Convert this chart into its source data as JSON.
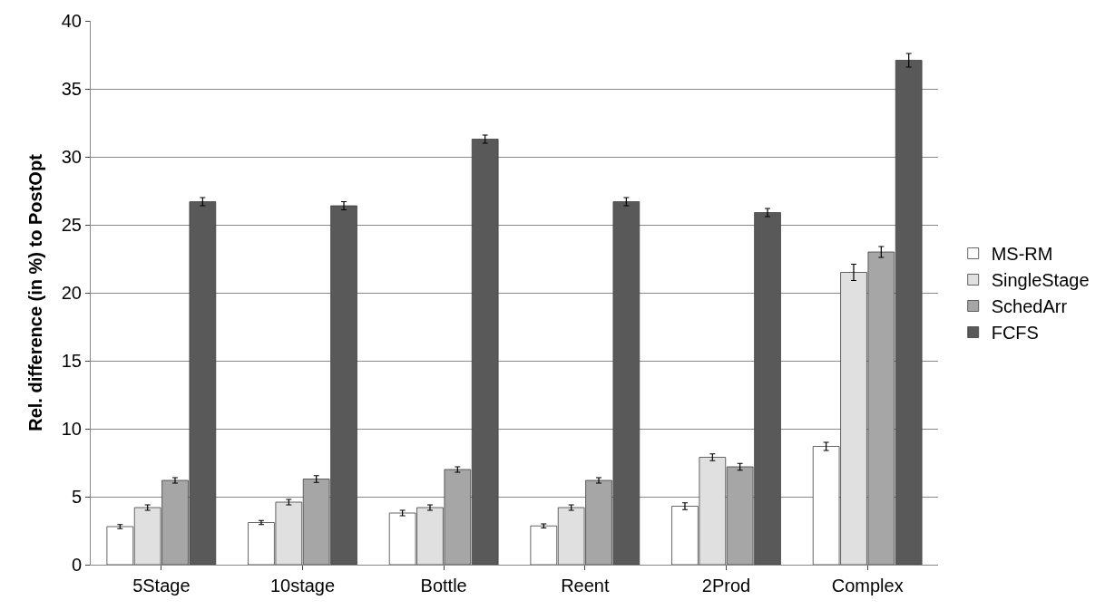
{
  "chart_data": {
    "type": "bar",
    "ylabel": "Rel. difference (in %) to PostOpt",
    "categories": [
      "5Stage",
      "10stage",
      "Bottle",
      "Reent",
      "2Prod",
      "Complex"
    ],
    "series": [
      {
        "name": "MS-RM",
        "color": "#ffffff",
        "values": [
          2.8,
          3.1,
          3.8,
          2.85,
          4.3,
          8.7
        ],
        "errors": [
          0.15,
          0.15,
          0.2,
          0.15,
          0.25,
          0.3
        ]
      },
      {
        "name": "SingleStage",
        "color": "#e0e0e0",
        "values": [
          4.2,
          4.6,
          4.2,
          4.2,
          7.9,
          21.5
        ],
        "errors": [
          0.2,
          0.2,
          0.2,
          0.2,
          0.25,
          0.6
        ]
      },
      {
        "name": "SchedArr",
        "color": "#a6a6a6",
        "values": [
          6.2,
          6.3,
          7.0,
          6.2,
          7.2,
          23.0
        ],
        "errors": [
          0.2,
          0.25,
          0.2,
          0.2,
          0.25,
          0.4
        ]
      },
      {
        "name": "FCFS",
        "color": "#595959",
        "values": [
          26.7,
          26.4,
          31.3,
          26.7,
          25.9,
          37.1
        ],
        "errors": [
          0.3,
          0.3,
          0.3,
          0.3,
          0.3,
          0.5
        ]
      }
    ],
    "ylim": [
      0,
      40
    ],
    "yticks": [
      0,
      5,
      10,
      15,
      20,
      25,
      30,
      35,
      40
    ],
    "grid": "y",
    "legend": "right"
  }
}
